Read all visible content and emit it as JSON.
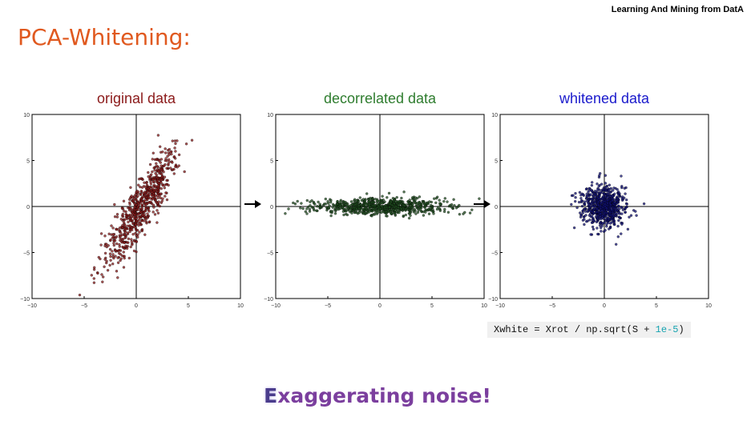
{
  "header": {
    "brand": "Learning And Mining from DatA"
  },
  "slide": {
    "title": "PCA-Whitening:"
  },
  "code": {
    "prefix": "Xwhite = Xrot / np.sqrt(S + ",
    "number": "1e-5",
    "suffix": ")"
  },
  "note": {
    "first_letter": "E",
    "rest": "xaggerating noise!"
  },
  "chart_data": [
    {
      "type": "scatter",
      "title": "original data",
      "title_color": "#8b1a1a",
      "point_color": "#8b1a1a",
      "xlim": [
        -10,
        10
      ],
      "ylim": [
        -10,
        10
      ],
      "xticks": [
        "−10",
        "−5",
        "0",
        "5",
        "10"
      ],
      "yticks": [
        "10",
        "5",
        "0",
        "−5",
        "−10"
      ],
      "distribution": {
        "center": [
          0.5,
          0
        ],
        "sd_major": 3.7,
        "sd_minor": 0.75,
        "angle_deg": 63,
        "n": 700
      }
    },
    {
      "type": "scatter",
      "title": "decorrelated data",
      "title_color": "#2f7d2f",
      "point_color": "#1f4d1f",
      "xlim": [
        -10,
        10
      ],
      "ylim": [
        -10,
        10
      ],
      "xticks": [
        "−10",
        "−5",
        "0",
        "5",
        "10"
      ],
      "yticks": [
        "10",
        "5",
        "0",
        "−5",
        "−10"
      ],
      "distribution": {
        "center": [
          0,
          0
        ],
        "sd_major": 3.3,
        "sd_minor": 0.45,
        "angle_deg": 0,
        "n": 700
      }
    },
    {
      "type": "scatter",
      "title": "whitened data",
      "title_color": "#1a1acc",
      "point_color": "#111177",
      "xlim": [
        -10,
        10
      ],
      "ylim": [
        -10,
        10
      ],
      "xticks": [
        "−10",
        "−5",
        "0",
        "5",
        "10"
      ],
      "yticks": [
        "10",
        "5",
        "0",
        "−5",
        "−10"
      ],
      "distribution": {
        "center": [
          0,
          0
        ],
        "sd_major": 1.05,
        "sd_minor": 1.05,
        "angle_deg": 0,
        "n": 700
      }
    }
  ]
}
